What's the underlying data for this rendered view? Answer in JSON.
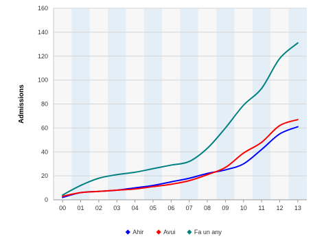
{
  "chart_data": {
    "type": "line",
    "title": "",
    "xlabel": "",
    "ylabel": "Admissions",
    "categories": [
      "00",
      "01",
      "02",
      "03",
      "04",
      "05",
      "06",
      "07",
      "08",
      "09",
      "10",
      "11",
      "12",
      "13"
    ],
    "ylim": [
      0,
      160
    ],
    "yticks": [
      0,
      20,
      40,
      60,
      80,
      100,
      120,
      140,
      160
    ],
    "grid": "alternating-column-bands",
    "legend_position": "bottom",
    "series": [
      {
        "name": "Ahir",
        "color": "#0000ff",
        "values": [
          2,
          6,
          7,
          8,
          10,
          12,
          15,
          18,
          22,
          25,
          30,
          42,
          55,
          61
        ]
      },
      {
        "name": "Avui",
        "color": "#ff0000",
        "values": [
          3,
          6,
          7,
          8,
          9,
          11,
          13,
          16,
          21,
          27,
          39,
          48,
          62,
          67
        ]
      },
      {
        "name": "Fa un any",
        "color": "#008080",
        "values": [
          4,
          12,
          18,
          21,
          23,
          26,
          29,
          32,
          43,
          60,
          79,
          93,
          118,
          131
        ]
      }
    ]
  }
}
